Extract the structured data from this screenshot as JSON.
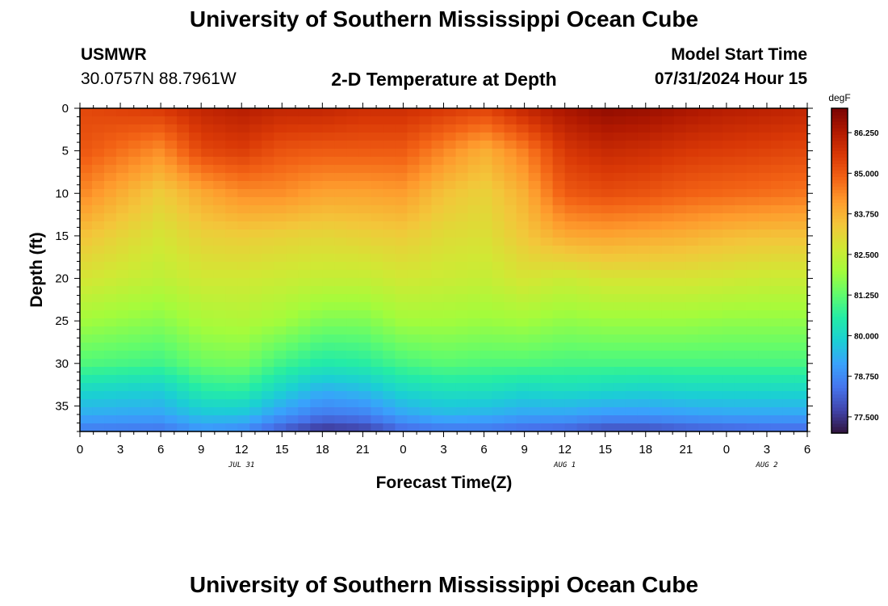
{
  "header": {
    "title": "University of Southern Mississippi Ocean Cube",
    "station": "USMWR",
    "coords": "30.0757N  88.7961W",
    "subtitle": "2-D Temperature at Depth",
    "model_label": "Model Start Time",
    "model_time": "07/31/2024 Hour 15"
  },
  "footer": {
    "title": "University of Southern Mississippi Ocean Cube"
  },
  "chart_data": {
    "type": "heatmap",
    "title": "2-D Temperature at Depth",
    "xlabel": "Forecast Time(Z)",
    "ylabel": "Depth (ft)",
    "x_tick_labels": [
      "0",
      "3",
      "6",
      "9",
      "12",
      "15",
      "18",
      "21",
      "0",
      "3",
      "6",
      "9",
      "12",
      "15",
      "18",
      "21",
      "0",
      "3",
      "6"
    ],
    "x_range_hours": [
      0,
      54
    ],
    "x_date_labels": [
      {
        "label": "JUL 31",
        "hour": 12
      },
      {
        "label": "AUG 1",
        "hour": 36
      },
      {
        "label": "AUG 2",
        "hour": 51
      }
    ],
    "y_ticks": [
      0,
      5,
      10,
      15,
      20,
      25,
      30,
      35
    ],
    "y_range": [
      0,
      38
    ],
    "y_inverted": true,
    "colorbar": {
      "unit": "degF",
      "min": 77.0,
      "max": 87.0,
      "ticks": [
        "86.250",
        "85.000",
        "83.750",
        "82.500",
        "81.250",
        "80.000",
        "78.750",
        "77.500"
      ],
      "colors": [
        "#30123b",
        "#4145ab",
        "#4675ed",
        "#39a2fc",
        "#1bcfd4",
        "#24eca6",
        "#61fc6c",
        "#a4fc3b",
        "#d1e834",
        "#f3c63a",
        "#fe9b2d",
        "#f36315",
        "#d93806",
        "#b11901",
        "#7a0402"
      ]
    },
    "profile_hours": [
      0,
      6,
      9,
      12,
      15,
      18,
      21,
      24,
      27,
      30,
      33,
      36,
      39,
      42,
      45,
      48,
      51,
      54
    ],
    "profiles": {
      "t0": [
        85.3,
        85.1,
        84.4,
        83.5,
        82.8,
        82.0,
        81.1,
        80.1,
        79.3,
        78.5
      ],
      "t6": [
        85.6,
        84.3,
        83.3,
        82.8,
        82.4,
        81.7,
        80.9,
        79.9,
        79.2,
        78.4
      ],
      "t9": [
        86.0,
        85.3,
        83.9,
        83.2,
        82.7,
        82.1,
        81.4,
        80.6,
        79.7,
        78.9
      ],
      "t12": [
        86.2,
        85.5,
        84.3,
        83.3,
        82.7,
        82.2,
        81.5,
        80.7,
        79.7,
        78.7
      ],
      "t15": [
        86.0,
        85.1,
        84.3,
        83.2,
        82.6,
        82.0,
        80.9,
        80.0,
        79.0,
        78.0
      ],
      "t18": [
        86.0,
        85.0,
        84.0,
        83.1,
        82.5,
        81.6,
        80.5,
        79.4,
        78.5,
        77.4
      ],
      "t21": [
        85.8,
        85.0,
        84.0,
        83.2,
        82.5,
        81.6,
        80.6,
        79.6,
        78.6,
        77.6
      ],
      "t24": [
        85.8,
        85.0,
        84.1,
        83.3,
        82.7,
        82.0,
        81.0,
        80.1,
        79.2,
        78.2
      ],
      "t27": [
        85.6,
        84.4,
        83.5,
        83.0,
        82.6,
        82.0,
        81.2,
        80.3,
        79.5,
        78.4
      ],
      "t30": [
        85.4,
        83.8,
        83.2,
        82.9,
        82.5,
        81.9,
        81.1,
        80.3,
        79.4,
        78.4
      ],
      "t33": [
        86.0,
        84.5,
        83.8,
        83.4,
        82.8,
        82.0,
        81.1,
        80.1,
        79.2,
        78.2
      ],
      "t36": [
        86.4,
        85.6,
        85.0,
        83.9,
        82.6,
        81.8,
        81.0,
        80.2,
        79.2,
        78.1
      ],
      "t39": [
        86.7,
        85.9,
        85.2,
        84.0,
        82.8,
        81.9,
        81.0,
        80.1,
        79.0,
        77.8
      ],
      "t42": [
        86.6,
        85.8,
        85.1,
        83.9,
        82.8,
        81.9,
        81.0,
        80.0,
        79.0,
        77.8
      ],
      "t45": [
        86.4,
        85.6,
        84.9,
        83.8,
        82.8,
        81.9,
        81.0,
        80.1,
        79.1,
        78.0
      ],
      "t48": [
        86.2,
        85.5,
        84.8,
        83.6,
        82.7,
        81.8,
        81.0,
        80.1,
        79.2,
        78.1
      ],
      "t51": [
        86.1,
        85.4,
        84.7,
        83.5,
        82.6,
        81.8,
        81.0,
        80.1,
        79.2,
        78.2
      ],
      "t54": [
        86.0,
        85.3,
        84.6,
        83.5,
        82.6,
        81.8,
        81.0,
        80.1,
        79.2,
        78.2
      ]
    },
    "profile_depths": [
      0,
      5,
      10,
      15,
      20,
      25,
      30,
      33,
      36,
      38
    ]
  }
}
